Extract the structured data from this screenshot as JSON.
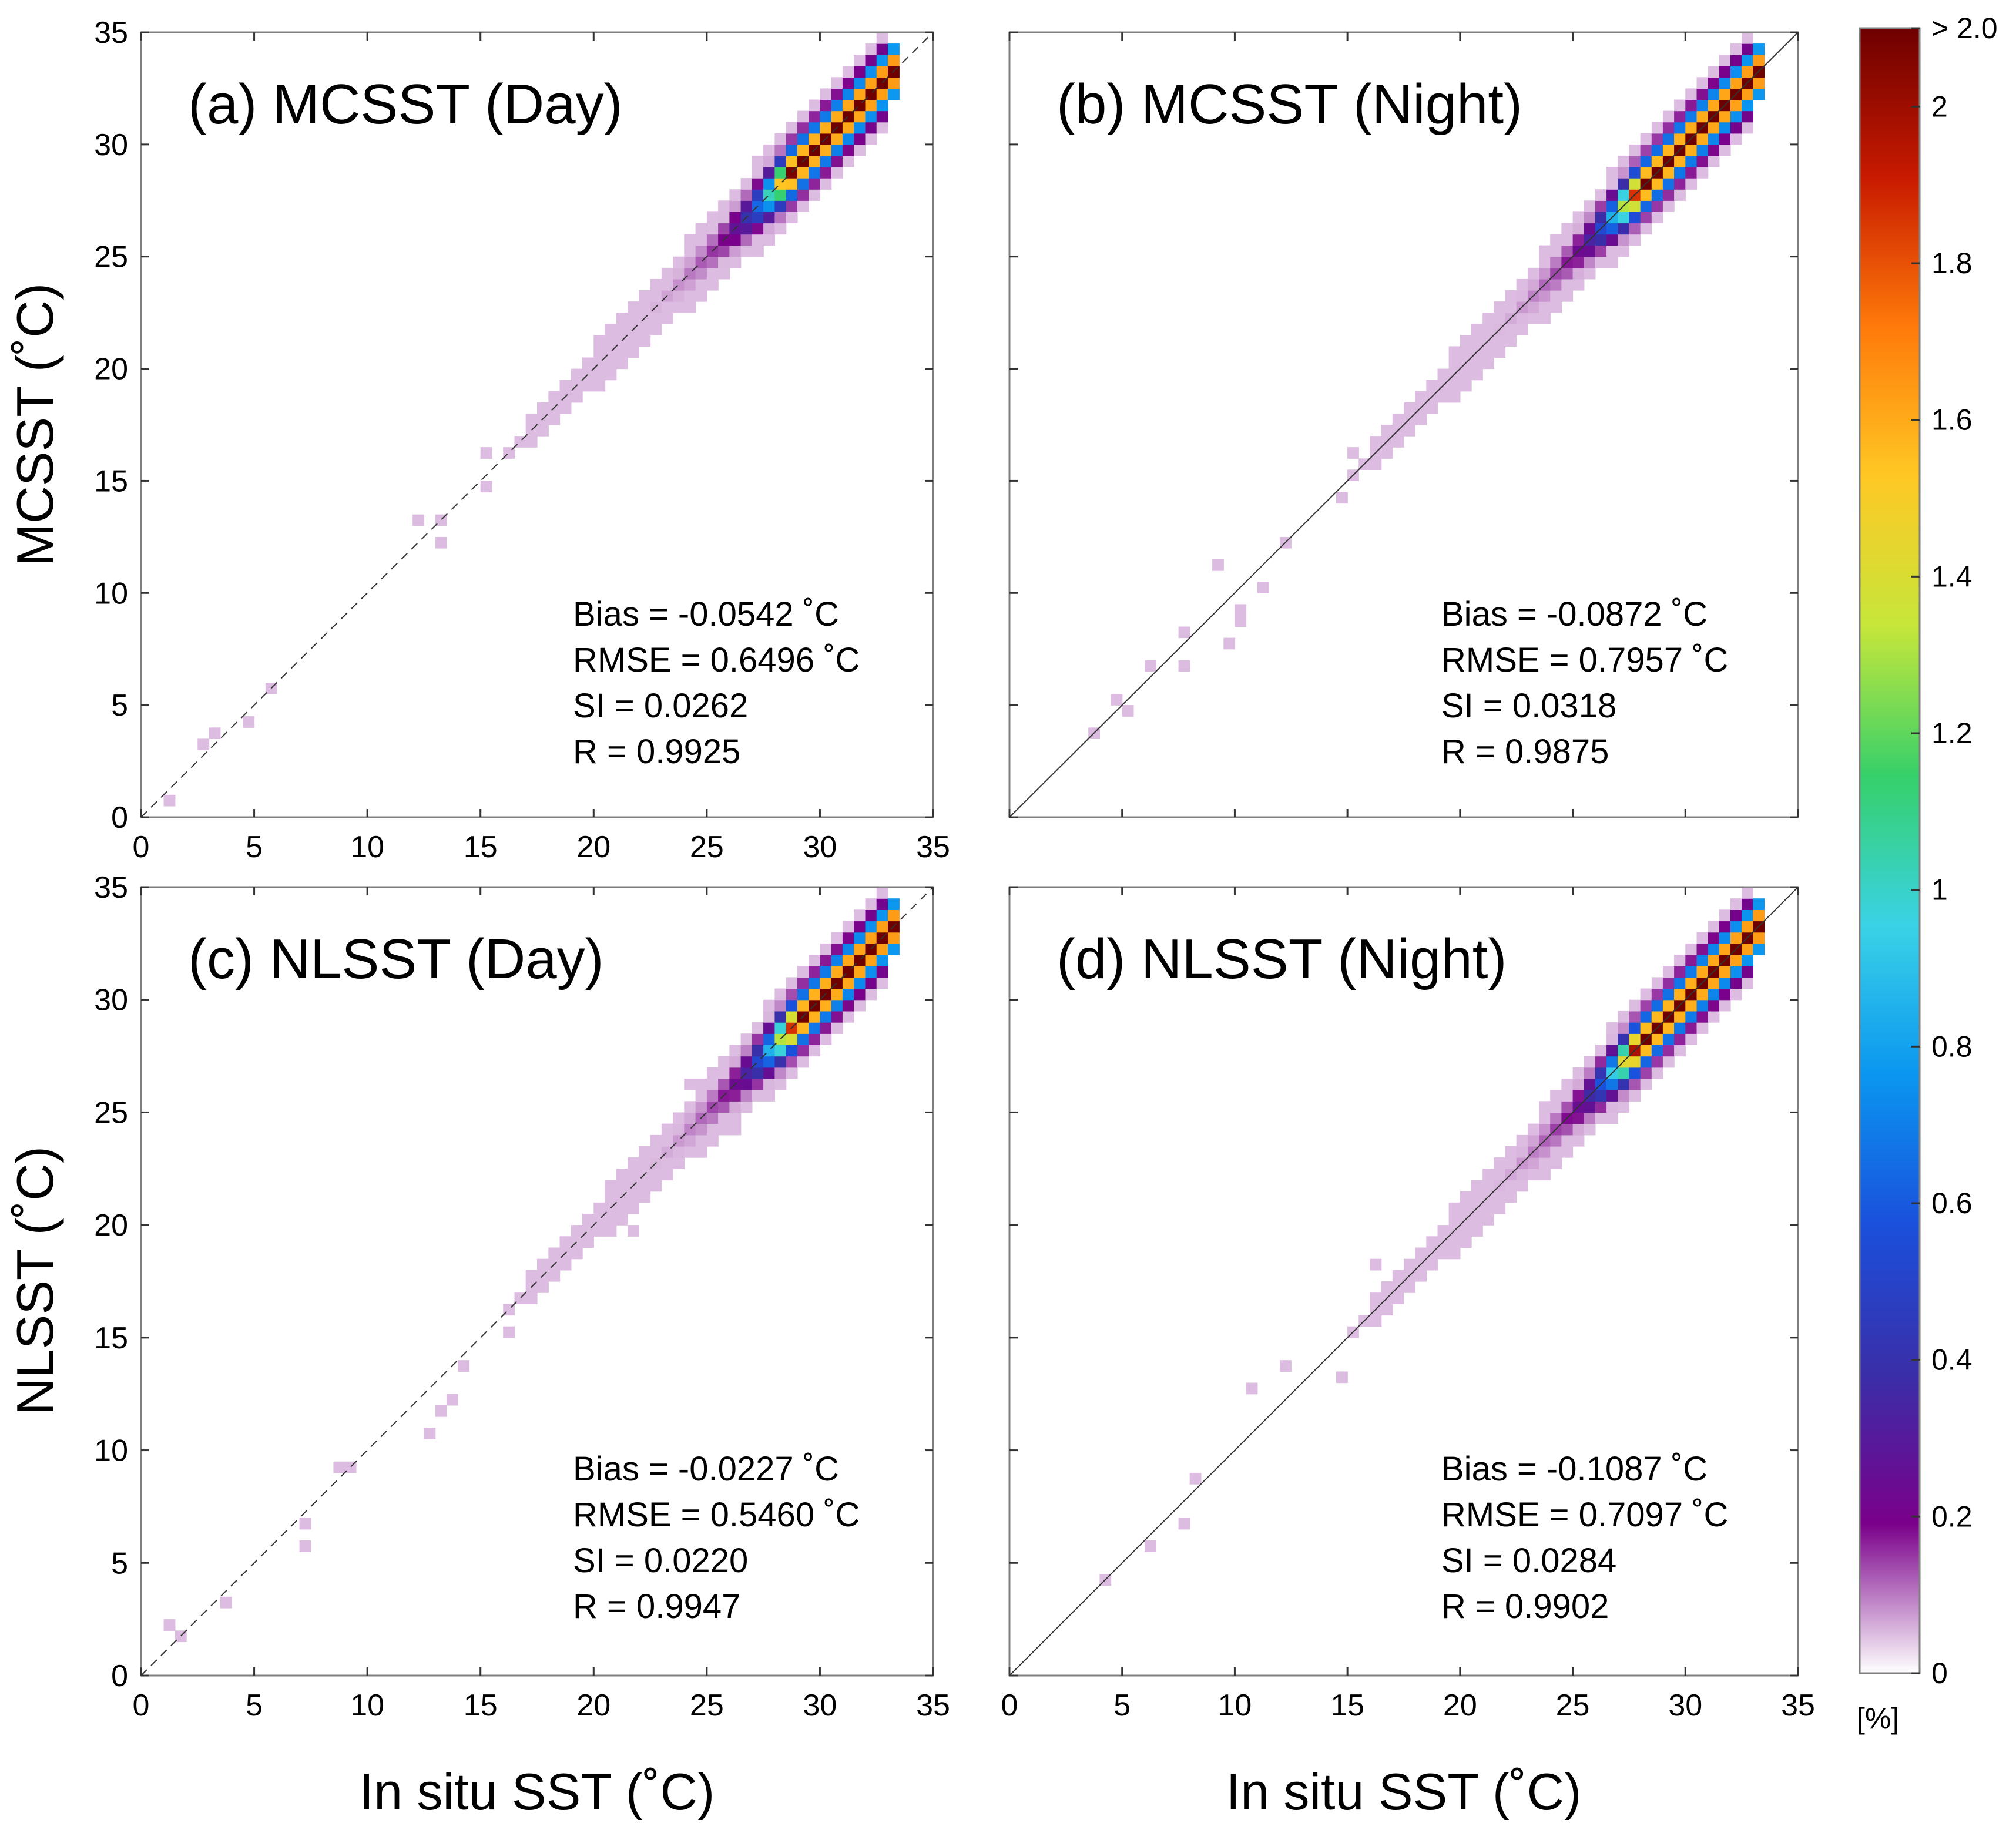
{
  "figure": {
    "xlabel": "In situ SST (˚C)",
    "ylabel_top": "MCSST (˚C)",
    "ylabel_bottom": "NLSST (˚C)"
  },
  "colorbar": {
    "label": "[%]",
    "range": [
      0,
      2.1
    ],
    "ticks": [
      {
        "value": 0,
        "label": "0"
      },
      {
        "value": 0.2,
        "label": "0.2"
      },
      {
        "value": 0.4,
        "label": "0.4"
      },
      {
        "value": 0.6,
        "label": "0.6"
      },
      {
        "value": 0.8,
        "label": "0.8"
      },
      {
        "value": 1.0,
        "label": "1"
      },
      {
        "value": 1.2,
        "label": "1.2"
      },
      {
        "value": 1.4,
        "label": "1.4"
      },
      {
        "value": 1.6,
        "label": "1.6"
      },
      {
        "value": 1.8,
        "label": "1.8"
      },
      {
        "value": 2.0,
        "label": "2"
      },
      {
        "value": 2.1,
        "label": "> 2.0"
      }
    ],
    "colors": [
      "#ffffff",
      "#7a008a",
      "#3a2ea8",
      "#1a50dc",
      "#0a96f0",
      "#3ad2e6",
      "#36d06a",
      "#c6e63a",
      "#ffc824",
      "#ff7a0a",
      "#c81a00",
      "#6e0000"
    ]
  },
  "chart_data": [
    {
      "type": "heatmap",
      "id": "a",
      "title": "(a) MCSST (Day)",
      "xlim": [
        0,
        35
      ],
      "ylim": [
        0,
        35
      ],
      "xticks": [
        "0",
        "5",
        "10",
        "15",
        "20",
        "25",
        "30",
        "35"
      ],
      "yticks": [
        "0",
        "5",
        "10",
        "15",
        "20",
        "25",
        "30",
        "35"
      ],
      "reference_line": "dashed",
      "stats": [
        "Bias = -0.0542 ˚C",
        "RMSE = 0.6496 ˚C",
        "SI = 0.0262",
        "R = 0.9925"
      ],
      "density_peak": {
        "x": 29.3,
        "y": 29.2,
        "value": 2.1
      }
    },
    {
      "type": "heatmap",
      "id": "b",
      "title": "(b) MCSST (Night)",
      "xlim": [
        0,
        35
      ],
      "ylim": [
        0,
        35
      ],
      "xticks": [
        "0",
        "5",
        "10",
        "15",
        "20",
        "25",
        "30",
        "35"
      ],
      "yticks": [
        "0",
        "5",
        "10",
        "15",
        "20",
        "25",
        "30",
        "35"
      ],
      "reference_line": "solid",
      "stats": [
        "Bias = -0.0872 ˚C",
        "RMSE = 0.7957 ˚C",
        "SI = 0.0318",
        "R = 0.9875"
      ],
      "density_peak": {
        "x": 28.5,
        "y": 28.4,
        "value": 2.1
      }
    },
    {
      "type": "heatmap",
      "id": "c",
      "title": "(c) NLSST (Day)",
      "xlim": [
        0,
        35
      ],
      "ylim": [
        0,
        35
      ],
      "xticks": [
        "0",
        "5",
        "10",
        "15",
        "20",
        "25",
        "30",
        "35"
      ],
      "yticks": [
        "0",
        "5",
        "10",
        "15",
        "20",
        "25",
        "30",
        "35"
      ],
      "reference_line": "dashed",
      "stats": [
        "Bias = -0.0227 ˚C",
        "RMSE = 0.5460 ˚C",
        "SI = 0.0220",
        "R = 0.9947"
      ],
      "density_peak": {
        "x": 29.5,
        "y": 29.5,
        "value": 2.1
      }
    },
    {
      "type": "heatmap",
      "id": "d",
      "title": "(d) NLSST (Night)",
      "xlim": [
        0,
        35
      ],
      "ylim": [
        0,
        35
      ],
      "xticks": [
        "0",
        "5",
        "10",
        "15",
        "20",
        "25",
        "30",
        "35"
      ],
      "yticks": [
        "0",
        "5",
        "10",
        "15",
        "20",
        "25",
        "30",
        "35"
      ],
      "reference_line": "solid",
      "stats": [
        "Bias = -0.1087 ˚C",
        "RMSE = 0.7097 ˚C",
        "SI = 0.0284",
        "R = 0.9902"
      ],
      "density_peak": {
        "x": 28.4,
        "y": 28.4,
        "value": 2.1
      }
    }
  ]
}
